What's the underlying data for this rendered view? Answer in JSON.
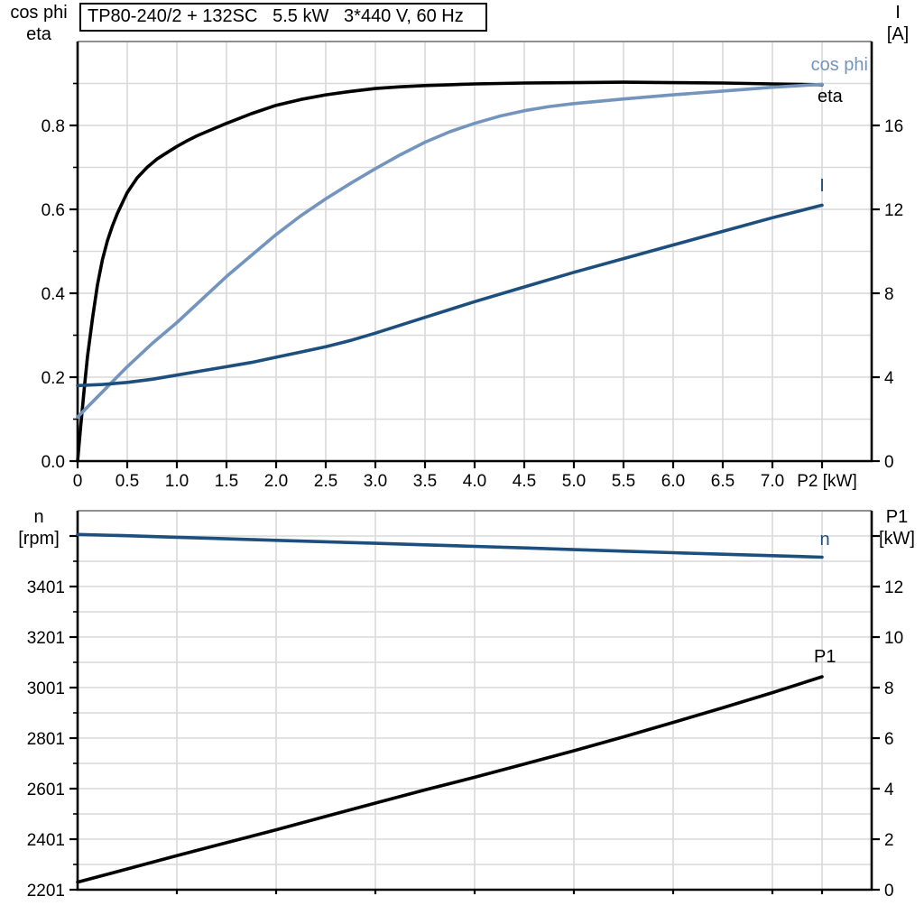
{
  "title": "TP80-240/2 + 132SC   5.5 kW   3*440 V, 60 Hz",
  "colors": {
    "black": "#000000",
    "dark_blue": "#1c4f7e",
    "light_blue": "#7394bc",
    "grid": "#d9d9d9",
    "border": "#909090",
    "axis": "#000000"
  },
  "chart_data": [
    {
      "type": "line",
      "xlabel": "P2 [kW]",
      "xlabel_x": 7.55,
      "xlim": [
        0,
        8
      ],
      "xticks": [
        0,
        0.5,
        1,
        1.5,
        2,
        2.5,
        3,
        3.5,
        4,
        4.5,
        5,
        5.5,
        6,
        6.5,
        7,
        7.5
      ],
      "xtick_len": 8,
      "xtick_labels": [
        "0",
        "0.5",
        "1.0",
        "1.5",
        "2.0",
        "2.5",
        "3.0",
        "3.5",
        "4.0",
        "4.5",
        "5.0",
        "5.5",
        "6.0",
        "6.5",
        "7.0"
      ],
      "x_gridlines": [
        0.5,
        1,
        1.5,
        2,
        2.5,
        3,
        3.5,
        4,
        4.5,
        5,
        5.5,
        6,
        6.5,
        7,
        7.5
      ],
      "y_gridlines": [
        0.1,
        0.2,
        0.3,
        0.4,
        0.5,
        0.6,
        0.7,
        0.8,
        0.9
      ],
      "grid": true,
      "legend_position": "end-of-curve",
      "left_axis": {
        "label_lines": [
          "cos phi",
          "eta"
        ],
        "lim": [
          0,
          1
        ],
        "tick_labels": [
          "0.0",
          "0.2",
          "0.4",
          "0.6",
          "0.8"
        ],
        "minor_ticks": [
          0.1,
          0.3,
          0.5,
          0.7,
          0.9
        ],
        "extra_major_ticks": []
      },
      "right_axis": {
        "label_lines": [
          "I",
          "[A]"
        ],
        "lim": [
          0,
          20
        ],
        "tick_labels": [
          "0",
          "4",
          "8",
          "12",
          "16"
        ],
        "minor_ticks": [],
        "extra_major_ticks": []
      },
      "series": [
        {
          "name": "eta",
          "label": "eta",
          "axis": "left",
          "color_key": "black",
          "points": [
            [
              0,
              0
            ],
            [
              0.03,
              0.08
            ],
            [
              0.07,
              0.18
            ],
            [
              0.1,
              0.25
            ],
            [
              0.15,
              0.34
            ],
            [
              0.2,
              0.42
            ],
            [
              0.25,
              0.48
            ],
            [
              0.3,
              0.525
            ],
            [
              0.35,
              0.56
            ],
            [
              0.4,
              0.59
            ],
            [
              0.45,
              0.615
            ],
            [
              0.5,
              0.64
            ],
            [
              0.6,
              0.675
            ],
            [
              0.7,
              0.7
            ],
            [
              0.8,
              0.72
            ],
            [
              0.9,
              0.735
            ],
            [
              1.0,
              0.75
            ],
            [
              1.1,
              0.763
            ],
            [
              1.2,
              0.775
            ],
            [
              1.35,
              0.79
            ],
            [
              1.5,
              0.805
            ],
            [
              1.75,
              0.828
            ],
            [
              2.0,
              0.848
            ],
            [
              2.25,
              0.862
            ],
            [
              2.5,
              0.873
            ],
            [
              2.75,
              0.881
            ],
            [
              3.0,
              0.888
            ],
            [
              3.25,
              0.892
            ],
            [
              3.5,
              0.895
            ],
            [
              3.75,
              0.897
            ],
            [
              4.0,
              0.899
            ],
            [
              4.5,
              0.901
            ],
            [
              5.0,
              0.902
            ],
            [
              5.5,
              0.903
            ],
            [
              6.0,
              0.902
            ],
            [
              6.5,
              0.901
            ],
            [
              7.0,
              0.899
            ],
            [
              7.5,
              0.897
            ]
          ]
        },
        {
          "name": "cos-phi",
          "label": "cos phi",
          "axis": "left",
          "color_key": "light_blue",
          "points": [
            [
              0,
              0.105
            ],
            [
              0.25,
              0.165
            ],
            [
              0.5,
              0.225
            ],
            [
              0.75,
              0.28
            ],
            [
              1.0,
              0.33
            ],
            [
              1.25,
              0.385
            ],
            [
              1.5,
              0.44
            ],
            [
              1.75,
              0.49
            ],
            [
              2.0,
              0.54
            ],
            [
              2.25,
              0.585
            ],
            [
              2.5,
              0.625
            ],
            [
              2.75,
              0.662
            ],
            [
              3.0,
              0.697
            ],
            [
              3.25,
              0.73
            ],
            [
              3.5,
              0.76
            ],
            [
              3.75,
              0.785
            ],
            [
              4.0,
              0.805
            ],
            [
              4.25,
              0.822
            ],
            [
              4.5,
              0.835
            ],
            [
              4.75,
              0.845
            ],
            [
              5.0,
              0.852
            ],
            [
              5.5,
              0.863
            ],
            [
              6.0,
              0.873
            ],
            [
              6.5,
              0.882
            ],
            [
              7.0,
              0.891
            ],
            [
              7.5,
              0.898
            ]
          ]
        },
        {
          "name": "current",
          "label": "I",
          "axis": "right",
          "color_key": "dark_blue",
          "points": [
            [
              0,
              3.6
            ],
            [
              0.25,
              3.65
            ],
            [
              0.5,
              3.75
            ],
            [
              0.75,
              3.9
            ],
            [
              1.0,
              4.1
            ],
            [
              1.25,
              4.3
            ],
            [
              1.5,
              4.5
            ],
            [
              1.75,
              4.7
            ],
            [
              2.0,
              4.95
            ],
            [
              2.25,
              5.2
            ],
            [
              2.5,
              5.45
            ],
            [
              2.75,
              5.75
            ],
            [
              3.0,
              6.1
            ],
            [
              3.5,
              6.85
            ],
            [
              4.0,
              7.6
            ],
            [
              4.5,
              8.3
            ],
            [
              5.0,
              9.0
            ],
            [
              5.5,
              9.65
            ],
            [
              6.0,
              10.3
            ],
            [
              6.5,
              10.95
            ],
            [
              7.0,
              11.6
            ],
            [
              7.5,
              12.2
            ]
          ]
        }
      ]
    },
    {
      "type": "line",
      "xlabel": "",
      "xlim": [
        0,
        8
      ],
      "xticks": [
        1,
        2,
        3,
        4,
        5,
        6,
        7,
        7.5
      ],
      "xtick_len": 5,
      "xtick_labels": [],
      "x_gridlines": [
        1,
        2,
        3,
        4,
        5,
        6,
        7,
        7.5
      ],
      "y_gridlines": [
        2301,
        2401,
        2501,
        2601,
        2701,
        2801,
        2901,
        3001,
        3101,
        3201,
        3301,
        3401,
        3501,
        3601
      ],
      "grid": true,
      "legend_position": "end-of-curve",
      "left_axis": {
        "label_lines": [
          "n",
          "[rpm]"
        ],
        "lim": [
          2201,
          3701
        ],
        "tick_labels": [
          "2201",
          "2401",
          "2601",
          "2801",
          "3001",
          "3201",
          "3401"
        ],
        "minor_ticks": [
          2301,
          2501,
          2701,
          2901,
          3101,
          3301,
          3501
        ],
        "extra_major_ticks": [
          3601
        ]
      },
      "right_axis": {
        "label_lines": [
          "P1",
          "[kW]"
        ],
        "lim": [
          0,
          15
        ],
        "tick_labels": [
          "0",
          "2",
          "4",
          "6",
          "8",
          "10",
          "12"
        ],
        "minor_ticks": [],
        "extra_major_ticks": [
          14
        ]
      },
      "series": [
        {
          "name": "speed",
          "label": "n",
          "axis": "left",
          "color_key": "dark_blue",
          "points": [
            [
              0,
              3607
            ],
            [
              0.5,
              3602
            ],
            [
              1.0,
              3596
            ],
            [
              1.5,
              3590
            ],
            [
              2.0,
              3584
            ],
            [
              2.5,
              3578
            ],
            [
              3.0,
              3572
            ],
            [
              3.5,
              3566
            ],
            [
              4.0,
              3560
            ],
            [
              4.5,
              3554
            ],
            [
              5.0,
              3547
            ],
            [
              5.5,
              3541
            ],
            [
              6.0,
              3535
            ],
            [
              6.5,
              3529
            ],
            [
              7.0,
              3523
            ],
            [
              7.5,
              3517
            ]
          ]
        },
        {
          "name": "p1",
          "label": "P1",
          "axis": "right",
          "color_key": "black",
          "points": [
            [
              0,
              0.3
            ],
            [
              0.5,
              0.82
            ],
            [
              1.0,
              1.35
            ],
            [
              1.5,
              1.86
            ],
            [
              2.0,
              2.37
            ],
            [
              2.5,
              2.9
            ],
            [
              3.0,
              3.43
            ],
            [
              3.5,
              3.95
            ],
            [
              4.0,
              4.45
            ],
            [
              4.5,
              4.97
            ],
            [
              5.0,
              5.5
            ],
            [
              5.5,
              6.05
            ],
            [
              6.0,
              6.62
            ],
            [
              6.5,
              7.2
            ],
            [
              7.0,
              7.8
            ],
            [
              7.5,
              8.43
            ]
          ]
        }
      ]
    }
  ]
}
